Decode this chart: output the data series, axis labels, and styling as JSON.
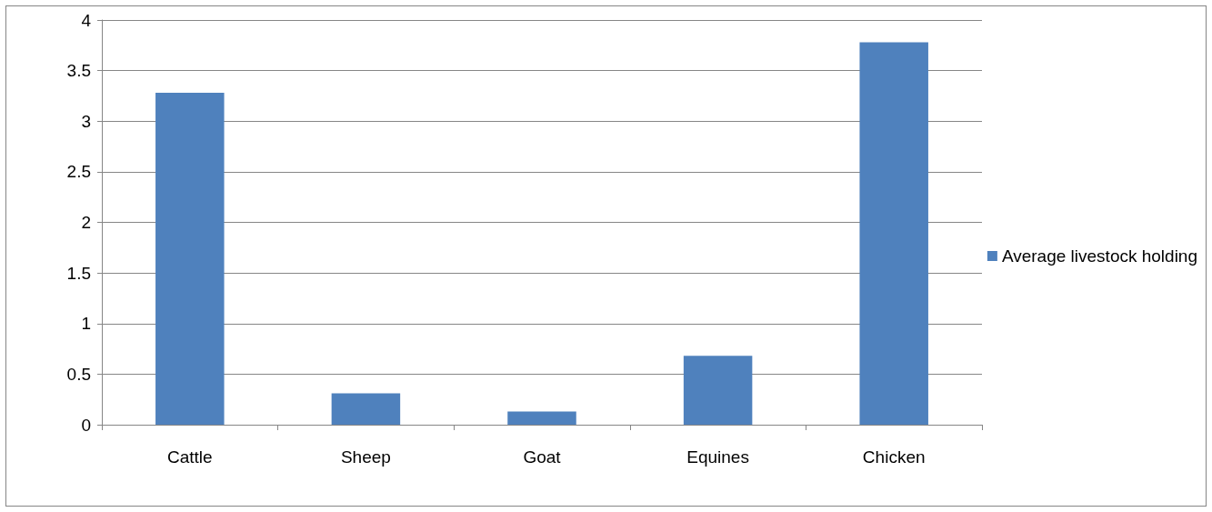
{
  "chart_data": {
    "type": "bar",
    "categories": [
      "Cattle",
      "Sheep",
      "Goat",
      "Equines",
      "Chicken"
    ],
    "series": [
      {
        "name": "Average livestock holding",
        "color": "#4f81bd",
        "values": [
          3.28,
          0.31,
          0.13,
          0.68,
          3.78
        ]
      }
    ],
    "ylim": [
      0,
      4
    ],
    "yticks": [
      0,
      0.5,
      1,
      1.5,
      2,
      2.5,
      3,
      3.5,
      4
    ],
    "grid": "y",
    "legend": "right"
  }
}
